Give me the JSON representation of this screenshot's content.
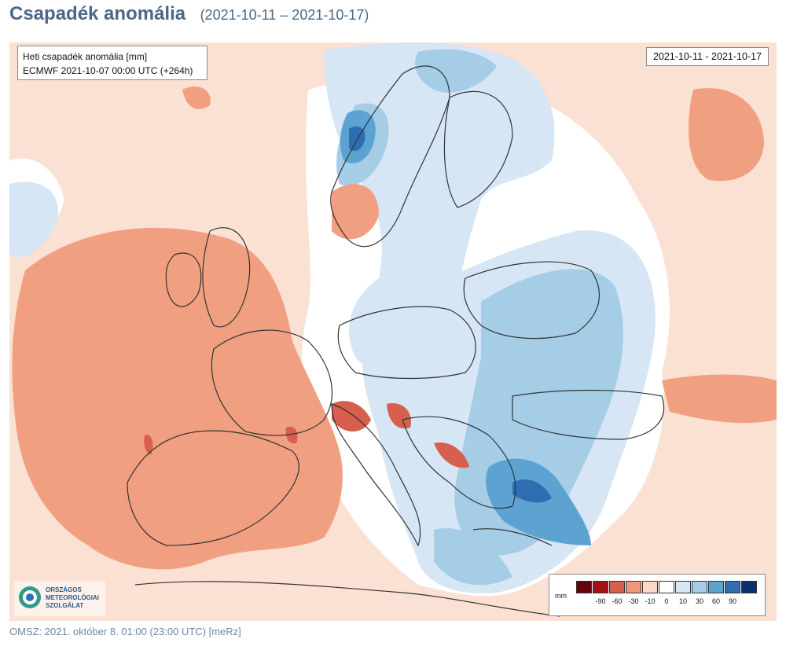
{
  "header": {
    "title": "Csapadék anomália",
    "date_range": "(2021-10-11 – 2021-10-17)"
  },
  "map": {
    "info": {
      "line1": "Heti csapadék anomália [mm]",
      "line2": "ECMWF 2021-10-07 00:00 UTC (+264h)"
    },
    "date_box": "2021-10-11 - 2021-10-17"
  },
  "legend": {
    "unit": "mm",
    "colors": [
      "#67000d",
      "#a50f15",
      "#d6604d",
      "#ee9a7a",
      "#fcd9c4",
      "#ffffff",
      "#d6e6f4",
      "#a5cde6",
      "#5ca3d2",
      "#2e6eb0",
      "#08306b"
    ],
    "ticks": [
      "-90",
      "-60",
      "-30",
      "-10",
      "0",
      "10",
      "30",
      "60",
      "90"
    ]
  },
  "logo": {
    "line1": "ORSZÁGOS",
    "line2": "METEOROLÓGIAI",
    "line3": "SZOLGÁLAT"
  },
  "footer": {
    "text": "OMSZ: 2021. október 8. 01:00 (23:00  UTC)  [meRz]"
  }
}
